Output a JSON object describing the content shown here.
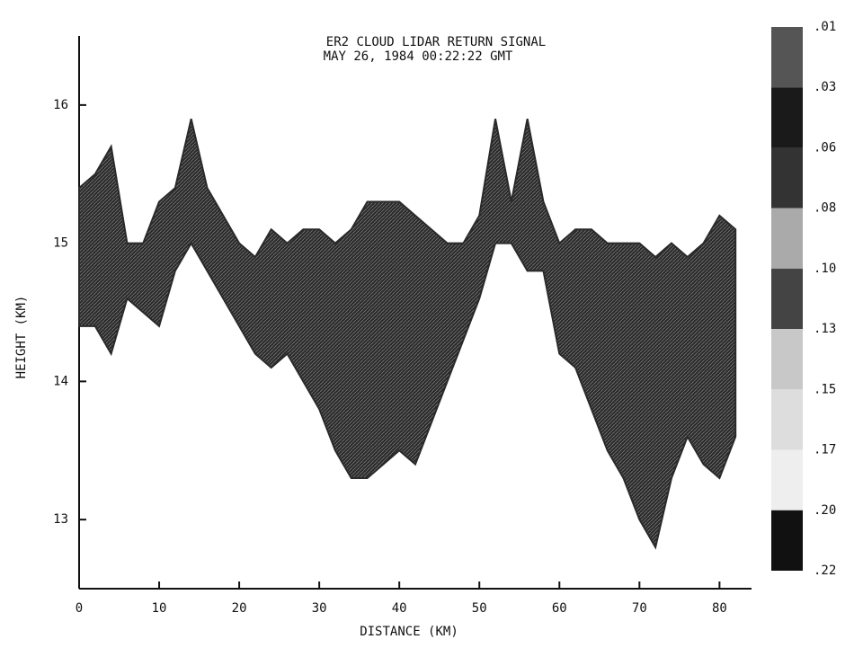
{
  "chart_data": {
    "type": "area",
    "title": "ER2 CLOUD LIDAR RETURN SIGNAL",
    "subtitle": "MAY 26, 1984 00:22:22 GMT",
    "x_label": "DISTANCE (KM)",
    "y_label": "HEIGHT (KM)",
    "x": [
      0,
      2,
      4,
      6,
      8,
      10,
      12,
      14,
      16,
      18,
      20,
      22,
      24,
      26,
      28,
      30,
      32,
      34,
      36,
      38,
      40,
      42,
      44,
      46,
      48,
      50,
      52,
      54,
      56,
      58,
      60,
      62,
      64,
      66,
      68,
      70,
      72,
      74,
      76,
      78,
      80,
      82
    ],
    "cloud_top": [
      15.4,
      15.5,
      15.7,
      15.0,
      15.0,
      15.3,
      15.4,
      15.9,
      15.4,
      15.2,
      15.0,
      14.9,
      15.1,
      15.0,
      15.1,
      15.1,
      15.0,
      15.1,
      15.3,
      15.3,
      15.3,
      15.2,
      15.1,
      15.0,
      15.0,
      15.2,
      15.9,
      15.3,
      15.9,
      15.3,
      15.0,
      15.1,
      15.1,
      15.0,
      15.0,
      15.0,
      14.9,
      15.0,
      14.9,
      15.0,
      15.2,
      15.1
    ],
    "cloud_base": [
      14.4,
      14.4,
      14.2,
      14.6,
      14.5,
      14.4,
      14.8,
      15.0,
      14.8,
      14.6,
      14.4,
      14.2,
      14.1,
      14.2,
      14.0,
      13.8,
      13.5,
      13.3,
      13.3,
      13.4,
      13.5,
      13.4,
      13.7,
      14.0,
      14.3,
      14.6,
      15.0,
      15.0,
      14.8,
      14.8,
      14.2,
      14.1,
      13.8,
      13.5,
      13.3,
      13.0,
      12.8,
      13.3,
      13.6,
      13.4,
      13.3,
      13.6
    ],
    "color": "#2a2a2a",
    "xlim": [
      0,
      84
    ],
    "ylim": [
      12.5,
      16.5
    ],
    "xticks": [
      0,
      10,
      20,
      30,
      40,
      50,
      60,
      70,
      80
    ],
    "yticks": [
      13,
      14,
      15,
      16
    ],
    "colorbar": {
      "ticks": [
        {
          "value": 0.01,
          "label": ".01"
        },
        {
          "value": 0.03,
          "label": ".03"
        },
        {
          "value": 0.06,
          "label": ".06"
        },
        {
          "value": 0.08,
          "label": ".08"
        },
        {
          "value": 0.1,
          "label": ".10"
        },
        {
          "value": 0.13,
          "label": ".13"
        },
        {
          "value": 0.15,
          "label": ".15"
        },
        {
          "value": 0.17,
          "label": ".17"
        },
        {
          "value": 0.2,
          "label": ".20"
        },
        {
          "value": 0.22,
          "label": ".22"
        }
      ],
      "colors": [
        "#555555",
        "#1a1a1a",
        "#333333",
        "#aaaaaa",
        "#444444",
        "#c8c8c8",
        "#dddddd",
        "#eeeeee",
        "#111111"
      ]
    }
  }
}
